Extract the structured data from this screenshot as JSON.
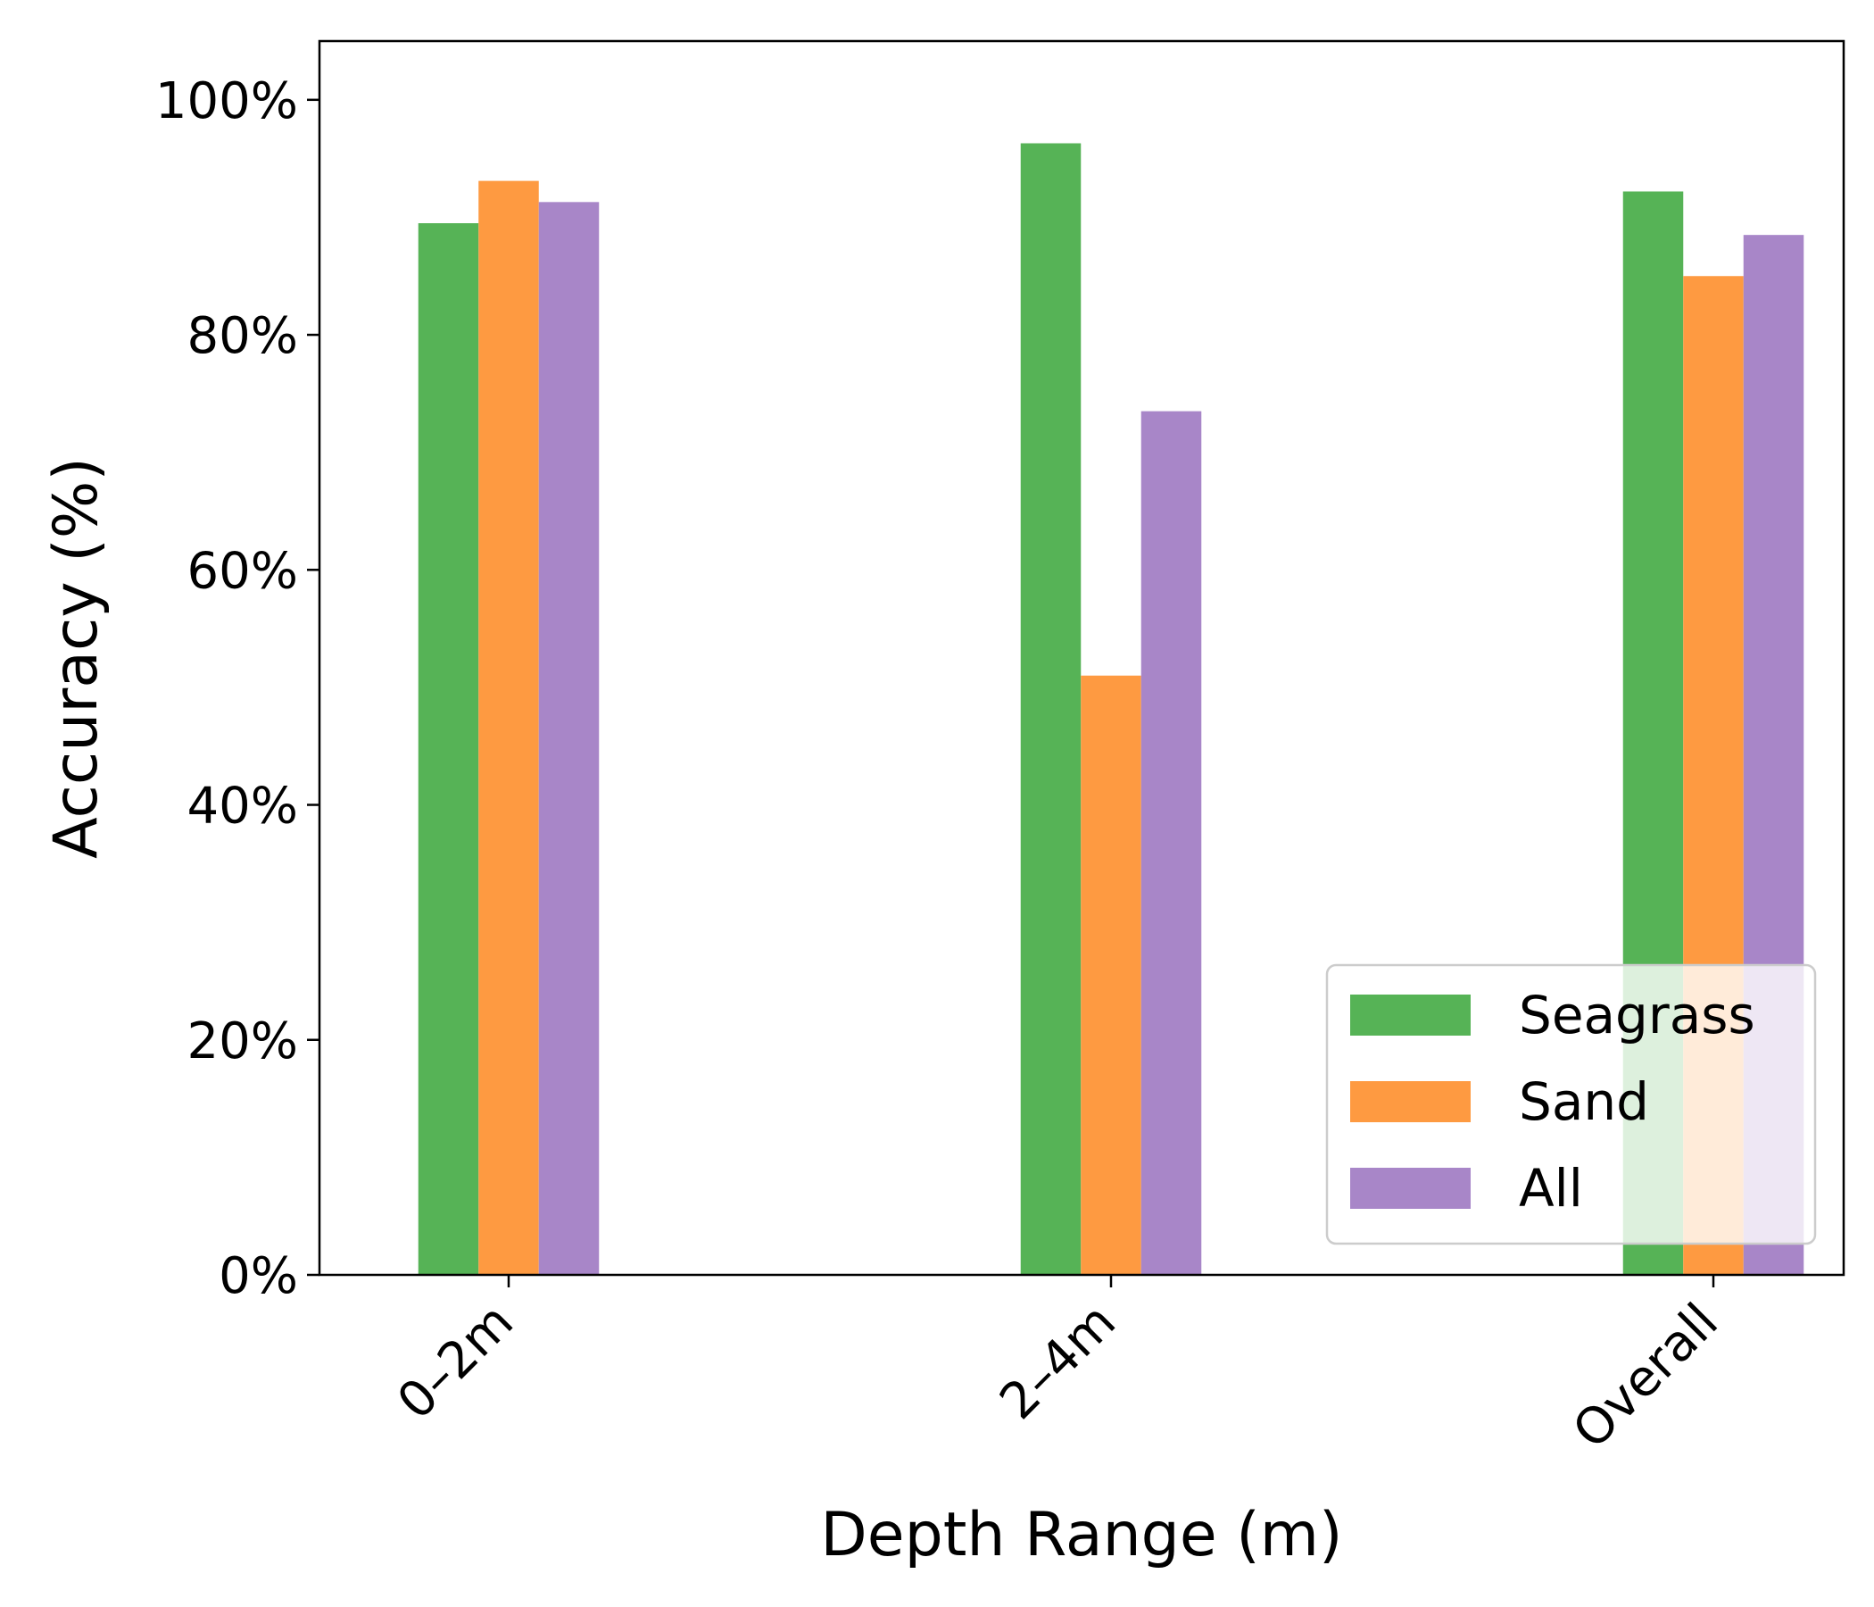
{
  "chart_data": {
    "type": "bar",
    "title": "",
    "xlabel": "Depth Range (m)",
    "ylabel": "Accuracy (%)",
    "categories": [
      "0–2m",
      "2–4m",
      "Overall"
    ],
    "series": [
      {
        "name": "Seagrass",
        "color": "#56b356",
        "values": [
          89.5,
          96.3,
          92.2
        ]
      },
      {
        "name": "Sand",
        "color": "#fe9a41",
        "values": [
          93.1,
          51.0,
          85.0
        ]
      },
      {
        "name": "All",
        "color": "#a886c8",
        "values": [
          91.3,
          73.5,
          88.5
        ]
      }
    ],
    "ylim": [
      0,
      105
    ],
    "yticks": [
      {
        "value": 0,
        "label": "0%"
      },
      {
        "value": 20,
        "label": "20%"
      },
      {
        "value": 40,
        "label": "40%"
      },
      {
        "value": 60,
        "label": "60%"
      },
      {
        "value": 80,
        "label": "80%"
      },
      {
        "value": 100,
        "label": "100%"
      }
    ],
    "grid": false,
    "legend_position": "lower-right"
  }
}
